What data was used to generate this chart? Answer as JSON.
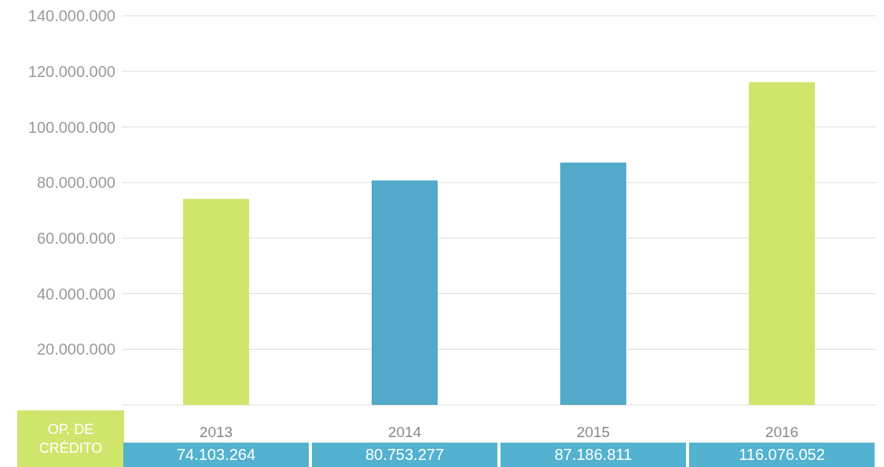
{
  "chart_data": {
    "type": "bar",
    "categories": [
      "2013",
      "2014",
      "2015",
      "2016"
    ],
    "series": [
      {
        "name": "OP. DE CRÉDITO",
        "values": [
          74103264,
          80753277,
          87186811,
          116076052
        ],
        "colors": [
          "#cfe56c",
          "#52a9c9",
          "#52a9c9",
          "#cfe56c"
        ],
        "value_labels": [
          "74.103.264",
          "80.753.277",
          "87.186.811",
          "116.076.052"
        ]
      }
    ],
    "ylim": [
      0,
      140000000
    ],
    "yticks": [
      {
        "value": 20000000,
        "label": "20.000.000"
      },
      {
        "value": 40000000,
        "label": "40.000.000"
      },
      {
        "value": 60000000,
        "label": "60.000.000"
      },
      {
        "value": 80000000,
        "label": "80.000.000"
      },
      {
        "value": 100000000,
        "label": "100.000.000"
      },
      {
        "value": 120000000,
        "label": "120.000.000"
      },
      {
        "value": 140000000,
        "label": "140.000.000"
      }
    ],
    "grid": "y",
    "legend": false
  }
}
